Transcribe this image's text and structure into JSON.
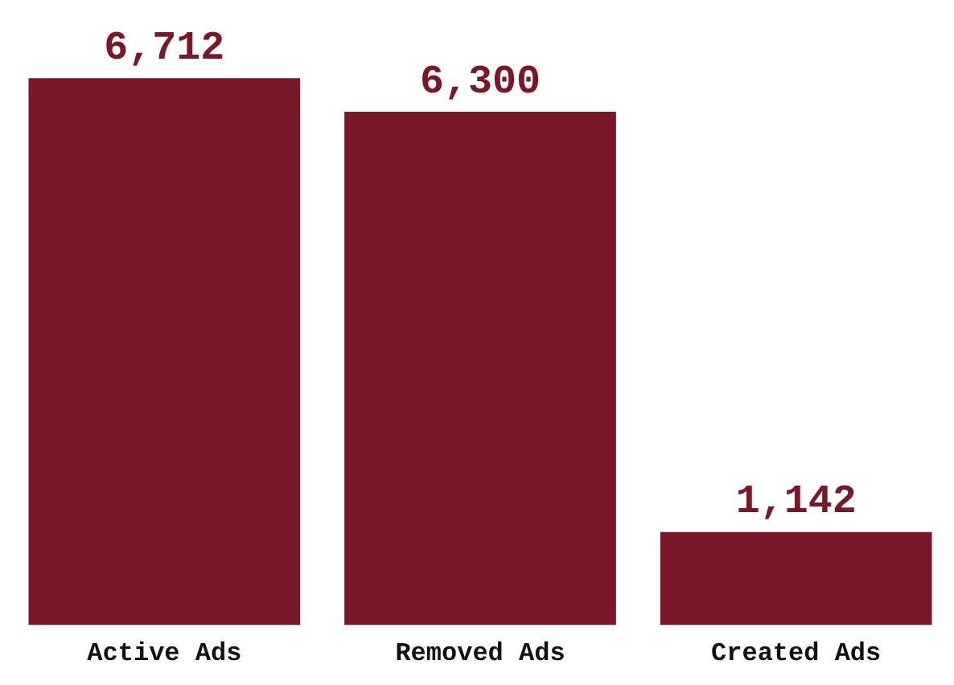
{
  "chart_data": {
    "type": "bar",
    "categories": [
      "Active Ads",
      "Removed Ads",
      "Created Ads"
    ],
    "values": [
      6712,
      6300,
      1142
    ],
    "value_labels": [
      "6,712",
      "6,300",
      "1,142"
    ],
    "color": "#7a1729",
    "grid": false,
    "legend": false
  }
}
